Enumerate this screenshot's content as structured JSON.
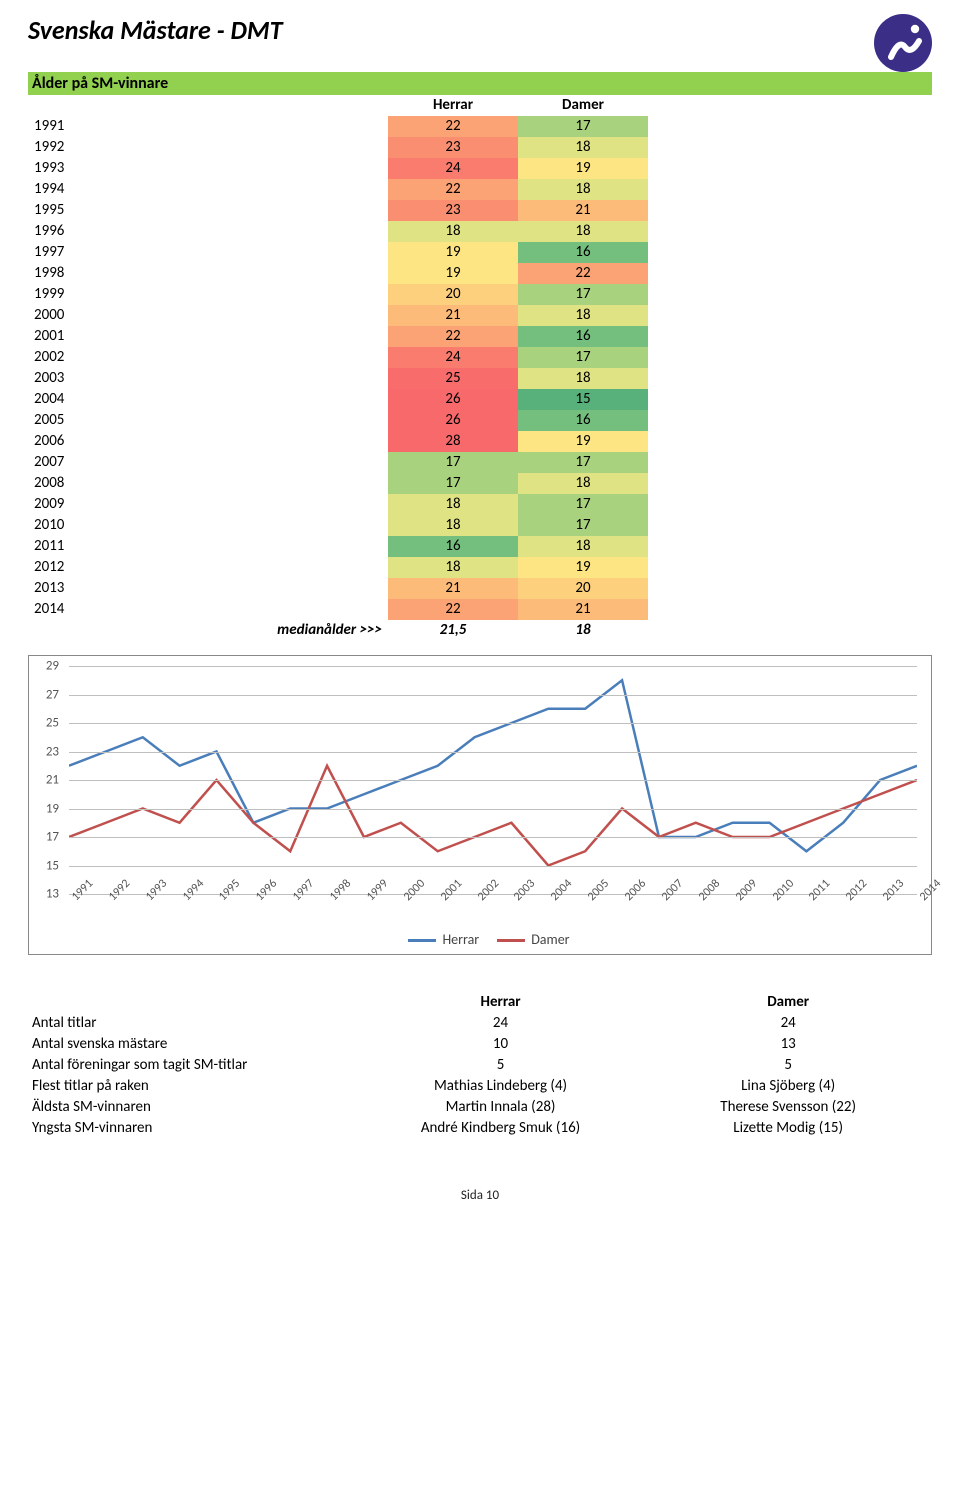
{
  "title": "Svenska Mästare - DMT",
  "subtitle": "Ålder på SM-vinnare",
  "columns": [
    "Herrar",
    "Damer"
  ],
  "rows": [
    {
      "year": "1991",
      "h": 22,
      "d": 17
    },
    {
      "year": "1992",
      "h": 23,
      "d": 18
    },
    {
      "year": "1993",
      "h": 24,
      "d": 19
    },
    {
      "year": "1994",
      "h": 22,
      "d": 18
    },
    {
      "year": "1995",
      "h": 23,
      "d": 21
    },
    {
      "year": "1996",
      "h": 18,
      "d": 18
    },
    {
      "year": "1997",
      "h": 19,
      "d": 16
    },
    {
      "year": "1998",
      "h": 19,
      "d": 22
    },
    {
      "year": "1999",
      "h": 20,
      "d": 17
    },
    {
      "year": "2000",
      "h": 21,
      "d": 18
    },
    {
      "year": "2001",
      "h": 22,
      "d": 16
    },
    {
      "year": "2002",
      "h": 24,
      "d": 17
    },
    {
      "year": "2003",
      "h": 25,
      "d": 18
    },
    {
      "year": "2004",
      "h": 26,
      "d": 15
    },
    {
      "year": "2005",
      "h": 26,
      "d": 16
    },
    {
      "year": "2006",
      "h": 28,
      "d": 19
    },
    {
      "year": "2007",
      "h": 17,
      "d": 17
    },
    {
      "year": "2008",
      "h": 17,
      "d": 18
    },
    {
      "year": "2009",
      "h": 18,
      "d": 17
    },
    {
      "year": "2010",
      "h": 18,
      "d": 17
    },
    {
      "year": "2011",
      "h": 16,
      "d": 18
    },
    {
      "year": "2012",
      "h": 18,
      "d": 19
    },
    {
      "year": "2013",
      "h": 21,
      "d": 20
    },
    {
      "year": "2014",
      "h": 22,
      "d": 21
    }
  ],
  "median_label": "medianålder >>>",
  "median_h": "21,5",
  "median_d": "18",
  "heatmap_colors": {
    "15": "#58b07a",
    "16": "#74bf7e",
    "17": "#a9d27f",
    "18": "#e0e383",
    "19": "#fde583",
    "20": "#fdd07e",
    "21": "#fcbb79",
    "22": "#fba374",
    "23": "#fa8e71",
    "24": "#f97c6f",
    "25": "#f86c6c",
    "26": "#f8696b",
    "27": "#f8696b",
    "28": "#f8696b"
  },
  "chart": {
    "type": "line",
    "series": [
      {
        "name": "Herrar",
        "color": "#4a7ebb",
        "key": "h"
      },
      {
        "name": "Damer",
        "color": "#c0504d",
        "key": "d"
      }
    ],
    "y_ticks": [
      13,
      15,
      17,
      19,
      21,
      23,
      25,
      27,
      29
    ],
    "ylim": [
      13,
      29
    ],
    "grid_color": "#bfbfbf",
    "line_width": 2.5
  },
  "stats_header": [
    "Herrar",
    "Damer"
  ],
  "stats_rows": [
    {
      "label": "Antal titlar",
      "h": "24",
      "d": "24"
    },
    {
      "label": "Antal svenska mästare",
      "h": "10",
      "d": "13"
    },
    {
      "label": "Antal föreningar som tagit SM-titlar",
      "h": "5",
      "d": "5"
    },
    {
      "label": "Flest titlar på raken",
      "h": "Mathias Lindeberg (4)",
      "d": "Lina Sjöberg (4)"
    },
    {
      "label": "Äldsta SM-vinnaren",
      "h": "Martin Innala (28)",
      "d": "Therese Svensson (22)"
    },
    {
      "label": "Yngsta SM-vinnaren",
      "h": "André Kindberg Smuk (16)",
      "d": "Lizette Modig (15)"
    }
  ],
  "footer": "Sida 10"
}
